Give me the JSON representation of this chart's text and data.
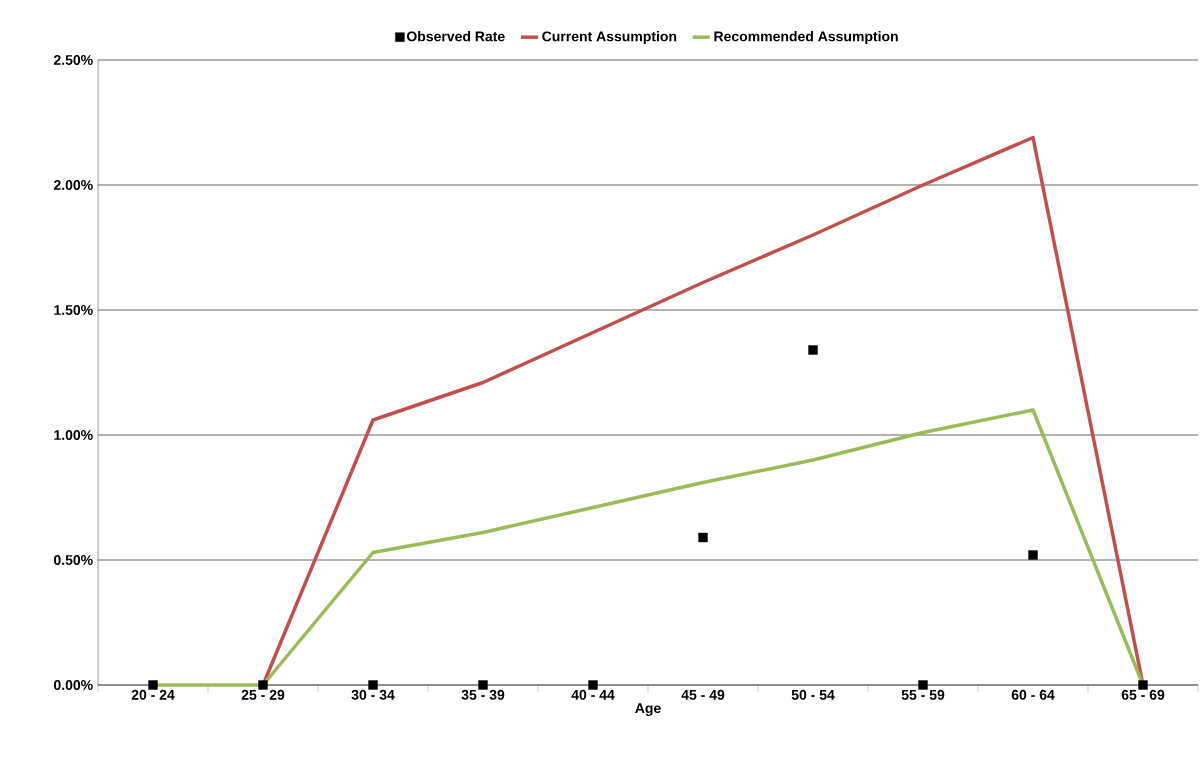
{
  "chart_data": {
    "type": "line",
    "xlabel": "Age",
    "categories": [
      "20 - 24",
      "25 - 29",
      "30 - 34",
      "35 - 39",
      "40 - 44",
      "45 - 49",
      "50 - 54",
      "55 - 59",
      "60 - 64",
      "65 - 69"
    ],
    "series": [
      {
        "name": "Observed Rate",
        "type": "scatter",
        "color": "#000000",
        "marker": "square",
        "values": [
          0,
          0,
          0,
          0,
          0,
          0.59,
          1.34,
          0,
          0.52,
          0
        ]
      },
      {
        "name": "Current Assumption",
        "color": "#c0504d",
        "values": [
          null,
          0,
          1.06,
          1.21,
          1.41,
          1.61,
          1.8,
          2.0,
          2.19,
          0
        ]
      },
      {
        "name": "Recommended Assumption",
        "color": "#9bbb59",
        "values": [
          0,
          0,
          0.53,
          0.61,
          0.71,
          0.81,
          0.9,
          1.01,
          1.1,
          0
        ]
      }
    ],
    "ylim": [
      0,
      2.5
    ],
    "yticks": [
      {
        "value": 0,
        "label": "0.00%"
      },
      {
        "value": 0.5,
        "label": "0.50%"
      },
      {
        "value": 1,
        "label": "1.00%"
      },
      {
        "value": 1.5,
        "label": "1.50%"
      },
      {
        "value": 2,
        "label": "2.00%"
      },
      {
        "value": 2.5,
        "label": "2.50%"
      }
    ],
    "grid": "y",
    "legend": "top",
    "marker": "none"
  }
}
